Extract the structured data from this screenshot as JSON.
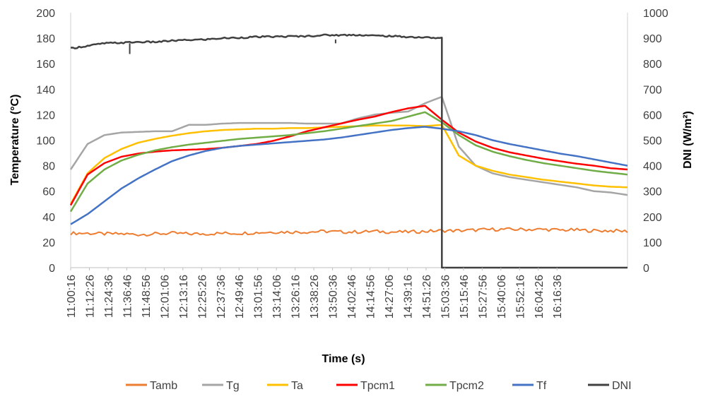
{
  "chart_data": {
    "type": "line",
    "xlabel": "Time (s)",
    "ylabel": "Temperature (°C)",
    "y2label": "DNI (W/m²)",
    "ylim": [
      0,
      200
    ],
    "y2lim": [
      0,
      1000
    ],
    "yticks": [
      0,
      20,
      40,
      60,
      80,
      100,
      120,
      140,
      160,
      180,
      200
    ],
    "y2ticks": [
      0,
      100,
      200,
      300,
      400,
      500,
      600,
      700,
      800,
      900,
      1000
    ],
    "x_tick_labels": [
      "11:00:16",
      "11:12:26",
      "11:24:36",
      "11:36:46",
      "11:48:56",
      "12:01:06",
      "12:13:16",
      "12:25:26",
      "12:37:36",
      "12:49:46",
      "13:01:56",
      "13:14:06",
      "13:26:16",
      "13:38:26",
      "13:50:36",
      "14:02:46",
      "14:14:56",
      "14:27:06",
      "14:39:16",
      "14:51:26",
      "15:03:36",
      "15:15:46",
      "15:27:56",
      "15:40:06",
      "15:52:16",
      "16:04:26",
      "16:16:36"
    ],
    "x_minutes": [
      0,
      10,
      20,
      30,
      40,
      50,
      60,
      70,
      80,
      90,
      100,
      110,
      120,
      130,
      140,
      150,
      160,
      170,
      180,
      190,
      200,
      210,
      220,
      230,
      240,
      250,
      260,
      270,
      280,
      290,
      300,
      310,
      320,
      330
    ],
    "legend_position": "bottom",
    "grid": false,
    "series": [
      {
        "name": "Tamb",
        "color": "#ED7D31",
        "axis": "left",
        "values": [
          27,
          27,
          26.5,
          26.5,
          26,
          26.5,
          27,
          26.5,
          26.5,
          27,
          27,
          27.5,
          28,
          28,
          28,
          28.5,
          28,
          28,
          28.5,
          28,
          28,
          28.5,
          29,
          29,
          29.5,
          30,
          30,
          30,
          30,
          29.5,
          29.5,
          29,
          29,
          28.5
        ]
      },
      {
        "name": "Tg",
        "color": "#A5A5A5",
        "axis": "left",
        "values": [
          77,
          97,
          104,
          106,
          106.5,
          107,
          107,
          112,
          112,
          113,
          113.5,
          113.5,
          113.5,
          113.5,
          113,
          113,
          113,
          117,
          120,
          121.5,
          122.5,
          129,
          134,
          95,
          80,
          74,
          71,
          69,
          67,
          65,
          63,
          60,
          59,
          57
        ]
      },
      {
        "name": "Ta",
        "color": "#FFC000",
        "axis": "left",
        "values": [
          50,
          74,
          86,
          93,
          98,
          101,
          103.5,
          105.5,
          107,
          108,
          108.5,
          109,
          109,
          109.5,
          109.5,
          110,
          110.5,
          111,
          111.5,
          111.5,
          111.5,
          111,
          112,
          88,
          80,
          76,
          73,
          71,
          69,
          67.5,
          66,
          64.5,
          63.5,
          63
        ]
      },
      {
        "name": "Tpcm1",
        "color": "#FF0000",
        "axis": "left",
        "values": [
          49,
          73,
          82,
          87,
          89.5,
          91,
          92,
          92.5,
          93,
          94,
          95.5,
          97,
          99.5,
          103,
          107,
          110,
          113,
          116,
          118.5,
          122,
          125,
          127,
          116,
          106,
          99,
          94,
          90.5,
          88,
          85.5,
          83.5,
          81.5,
          80,
          78,
          77
        ]
      },
      {
        "name": "Tpcm2",
        "color": "#70AD47",
        "axis": "left",
        "values": [
          44,
          66,
          77,
          84,
          88.5,
          92,
          94.5,
          96.5,
          98,
          99.5,
          101,
          102,
          103,
          104,
          105.5,
          107,
          109,
          111,
          113,
          115,
          118.5,
          122,
          114,
          104,
          96,
          91,
          87.5,
          84.5,
          82,
          80,
          78,
          76,
          74.5,
          73
        ]
      },
      {
        "name": "Tf",
        "color": "#4472C4",
        "axis": "left",
        "values": [
          34,
          42,
          52,
          62,
          70,
          77,
          83.5,
          88,
          91.5,
          94,
          95.5,
          96.5,
          97.5,
          98.5,
          99.5,
          100.5,
          102,
          104,
          106,
          108,
          109.5,
          110.5,
          109,
          107,
          104,
          100,
          97,
          94.5,
          92,
          89.5,
          87.5,
          85,
          82.5,
          80
        ]
      },
      {
        "name": "DNI",
        "color": "#404040",
        "axis": "right",
        "values": [
          860,
          870,
          880,
          882,
          885,
          885,
          890,
          893,
          895,
          900,
          902,
          905,
          906,
          907,
          908,
          912,
          912,
          913,
          910,
          908,
          905,
          903,
          900,
          0,
          0,
          0,
          0,
          0,
          0,
          0,
          0,
          0,
          0,
          0
        ]
      }
    ]
  }
}
